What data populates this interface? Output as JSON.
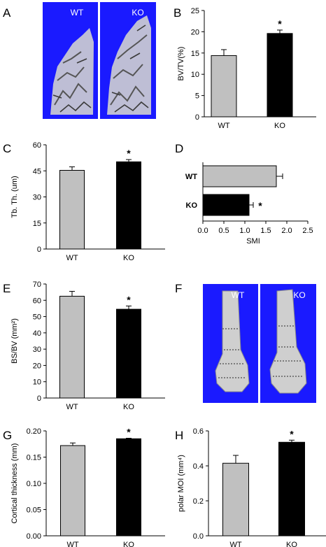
{
  "colors": {
    "wt": "#c0c0c0",
    "ko": "#000000",
    "image_bg": "#1a1aff",
    "bone": "#cfcfcf"
  },
  "panels": {
    "A": {
      "letter": "A",
      "labels": [
        "WT",
        "KO"
      ]
    },
    "F": {
      "letter": "F",
      "labels": [
        "WT",
        "KO"
      ]
    }
  },
  "chart_data": [
    {
      "id": "B",
      "letter": "B",
      "type": "bar",
      "orientation": "vertical",
      "categories": [
        "WT",
        "KO"
      ],
      "values": [
        14.4,
        19.6
      ],
      "errors": [
        1.4,
        0.8
      ],
      "ylabel": "BV/TV(%)",
      "ylim": [
        0,
        25
      ],
      "ticks": [
        0,
        5,
        10,
        15,
        20,
        25
      ],
      "tick_labels": [
        "0",
        "5",
        "10",
        "15",
        "20",
        "25"
      ],
      "significance": "*",
      "grid": false
    },
    {
      "id": "C",
      "letter": "C",
      "type": "bar",
      "orientation": "vertical",
      "categories": [
        "WT",
        "KO"
      ],
      "values": [
        45.3,
        50.2
      ],
      "errors": [
        2.0,
        1.3
      ],
      "ylabel": "Tb. Th. (um)",
      "ylim": [
        0,
        60
      ],
      "ticks": [
        0,
        15,
        30,
        45,
        60
      ],
      "tick_labels": [
        "0",
        "15",
        "30",
        "45",
        "60"
      ],
      "significance": "*",
      "grid": false
    },
    {
      "id": "D",
      "letter": "D",
      "type": "bar",
      "orientation": "horizontal",
      "categories": [
        "WT",
        "KO"
      ],
      "values": [
        1.75,
        1.1
      ],
      "errors": [
        0.15,
        0.1
      ],
      "xlabel": "SMI",
      "xlim": [
        0,
        2.5
      ],
      "ticks": [
        0,
        0.5,
        1,
        1.5,
        2,
        2.5
      ],
      "tick_labels": [
        "0.0",
        "0.5",
        "1.0",
        "1.5",
        "2.0",
        "2.5"
      ],
      "significance": "*",
      "grid": false
    },
    {
      "id": "E",
      "letter": "E",
      "type": "bar",
      "orientation": "vertical",
      "categories": [
        "WT",
        "KO"
      ],
      "values": [
        62.5,
        54.5
      ],
      "errors": [
        3.0,
        2.0
      ],
      "ylabel": "BS/BV (mm²)",
      "ylim": [
        0,
        70
      ],
      "ticks": [
        0,
        10,
        20,
        30,
        40,
        50,
        60,
        70
      ],
      "tick_labels": [
        "0",
        "10",
        "20",
        "30",
        "40",
        "50",
        "60",
        "70"
      ],
      "significance": "*",
      "grid": false
    },
    {
      "id": "G",
      "letter": "G",
      "type": "bar",
      "orientation": "vertical",
      "categories": [
        "WT",
        "KO"
      ],
      "values": [
        0.172,
        0.185
      ],
      "errors": [
        0.005,
        0.001
      ],
      "ylabel": "Cortical thickness (mm)",
      "ylim": [
        0,
        0.2
      ],
      "ticks": [
        0,
        0.05,
        0.1,
        0.15,
        0.2
      ],
      "tick_labels": [
        "0.00",
        "0.05",
        "0.10",
        "0.15",
        "0.20"
      ],
      "significance": "*",
      "grid": false
    },
    {
      "id": "H",
      "letter": "H",
      "type": "bar",
      "orientation": "vertical",
      "categories": [
        "WT",
        "KO"
      ],
      "values": [
        0.415,
        0.535
      ],
      "errors": [
        0.045,
        0.012
      ],
      "ylabel": "polar MOI (mm⁴)",
      "ylim": [
        0,
        0.6
      ],
      "ticks": [
        0,
        0.2,
        0.4,
        0.6
      ],
      "tick_labels": [
        "0.0",
        "0.2",
        "0.4",
        "0.6"
      ],
      "significance": "*",
      "grid": false
    }
  ]
}
